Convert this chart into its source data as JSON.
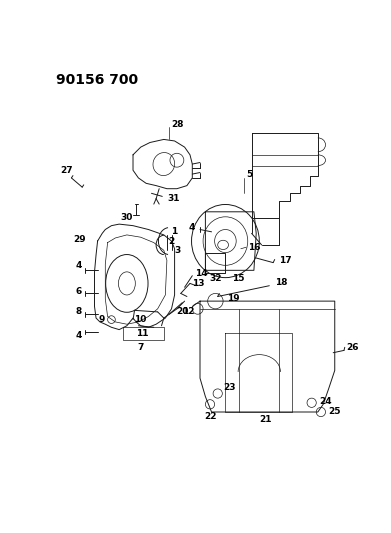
{
  "title": "90156 700",
  "bg_color": "#ffffff",
  "line_color": "#1a1a1a",
  "title_fontsize": 10,
  "label_fontsize": 6.5,
  "fig_width": 3.91,
  "fig_height": 5.33,
  "dpi": 100
}
